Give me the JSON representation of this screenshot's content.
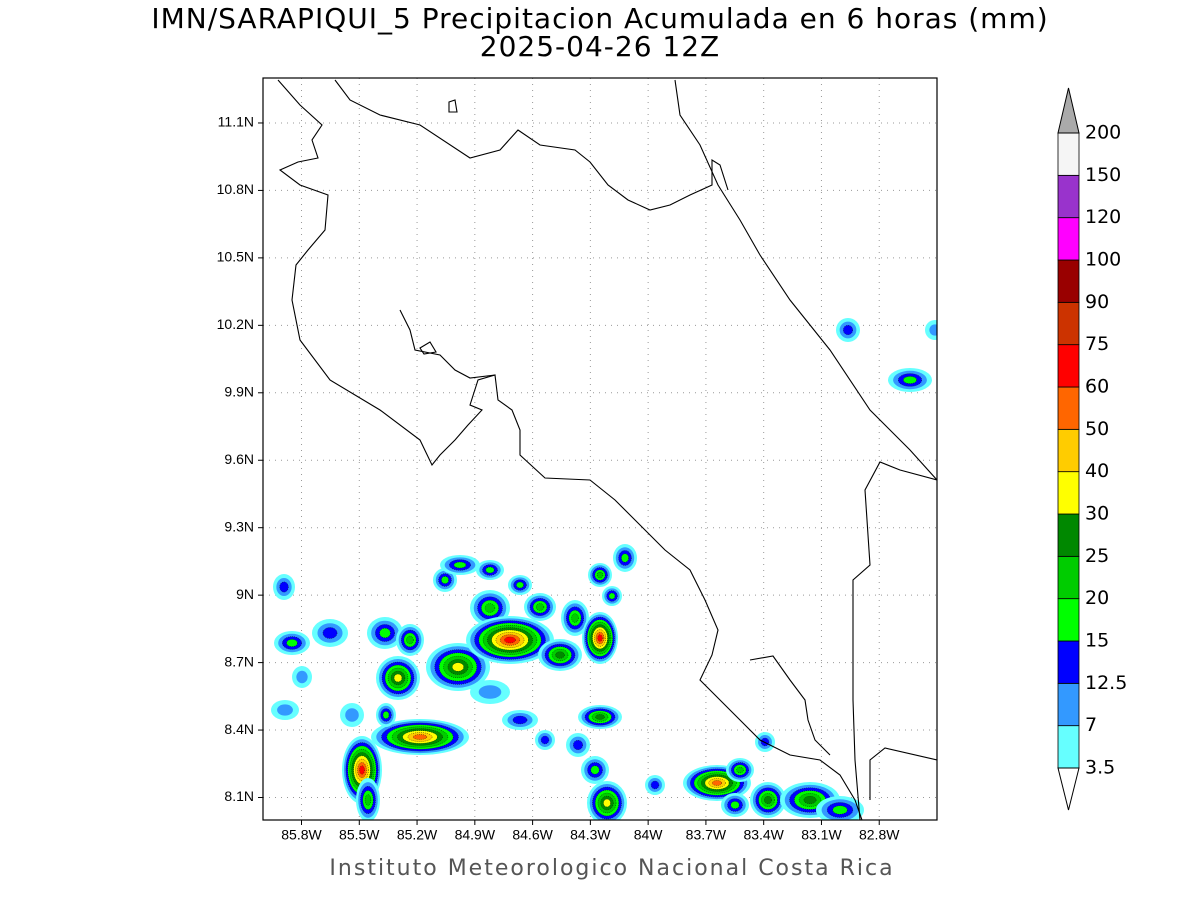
{
  "map": {
    "title": "IMN/SARAPIQUI_5 Precipitacion Acumulada en 6 horas (mm)",
    "subtitle": "2025-04-26 12Z",
    "footer": "Instituto Meteorologico Nacional Costa Rica",
    "xlim": [
      -86.0,
      -82.5
    ],
    "ylim": [
      8.0,
      11.3
    ],
    "xticks": [
      {
        "value": -85.8,
        "label": "85.8W"
      },
      {
        "value": -85.5,
        "label": "85.5W"
      },
      {
        "value": -85.2,
        "label": "85.2W"
      },
      {
        "value": -84.9,
        "label": "84.9W"
      },
      {
        "value": -84.6,
        "label": "84.6W"
      },
      {
        "value": -84.3,
        "label": "84.3W"
      },
      {
        "value": -84.0,
        "label": "84W"
      },
      {
        "value": -83.7,
        "label": "83.7W"
      },
      {
        "value": -83.4,
        "label": "83.4W"
      },
      {
        "value": -83.1,
        "label": "83.1W"
      },
      {
        "value": -82.8,
        "label": "82.8W"
      }
    ],
    "yticks": [
      {
        "value": 8.1,
        "label": "8.1N"
      },
      {
        "value": 8.4,
        "label": "8.4N"
      },
      {
        "value": 8.7,
        "label": "8.7N"
      },
      {
        "value": 9.0,
        "label": "9N"
      },
      {
        "value": 9.3,
        "label": "9.3N"
      },
      {
        "value": 9.6,
        "label": "9.6N"
      },
      {
        "value": 9.9,
        "label": "9.9N"
      },
      {
        "value": 10.2,
        "label": "10.2N"
      },
      {
        "value": 10.5,
        "label": "10.5N"
      },
      {
        "value": 10.8,
        "label": "10.8N"
      },
      {
        "value": 11.1,
        "label": "11.1N"
      }
    ],
    "grid": true
  },
  "colorbar": {
    "levels": [
      3.5,
      7,
      12.5,
      15,
      20,
      25,
      30,
      40,
      50,
      60,
      75,
      90,
      100,
      120,
      150,
      200
    ],
    "colors": [
      "#66ffff",
      "#3399ff",
      "#0000ff",
      "#00ff00",
      "#00cc00",
      "#008800",
      "#ffff00",
      "#ffcc00",
      "#ff6600",
      "#ff0000",
      "#cc3300",
      "#990000",
      "#ff00ff",
      "#9933cc",
      "#f5f5f5"
    ],
    "under_color": "#ffffff",
    "over_color": "#aaaaaa"
  }
}
